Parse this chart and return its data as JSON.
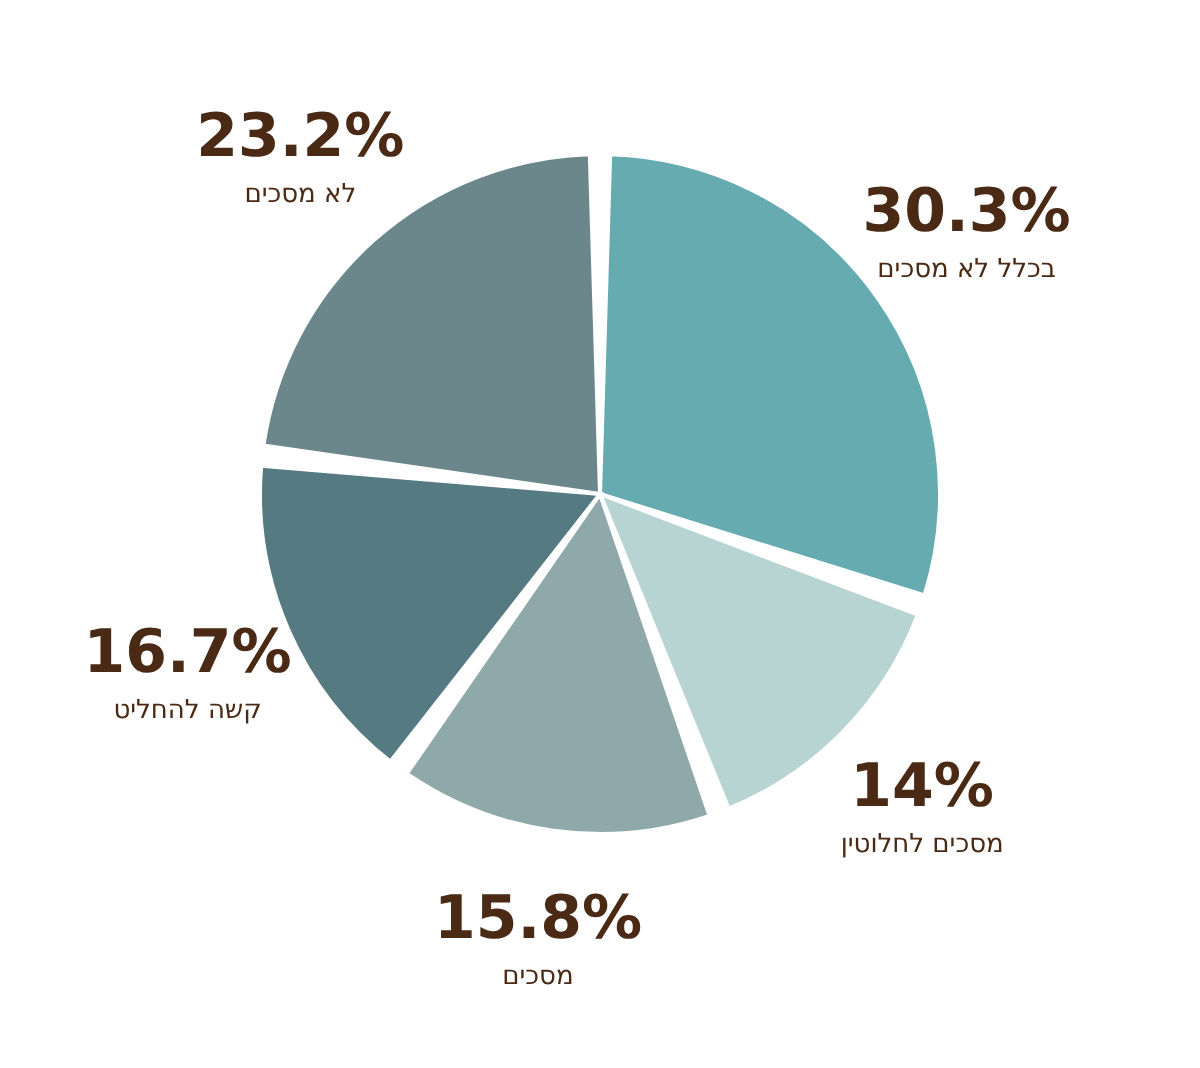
{
  "chart_data": {
    "type": "pie",
    "categories": [
      "בכלל לא מסכים",
      "מסכים לחלוטין",
      "מסכים",
      "קשה להחליט",
      "לא מסכים"
    ],
    "values": [
      30.3,
      14,
      15.8,
      16.7,
      23.2
    ],
    "value_labels": [
      "30.3%",
      "14%",
      "15.8%",
      "16.7%",
      "23.2%"
    ],
    "colors": [
      "#66abb0",
      "#b7d3d2",
      "#8fa9aa",
      "#557a82",
      "#6b878c"
    ]
  }
}
